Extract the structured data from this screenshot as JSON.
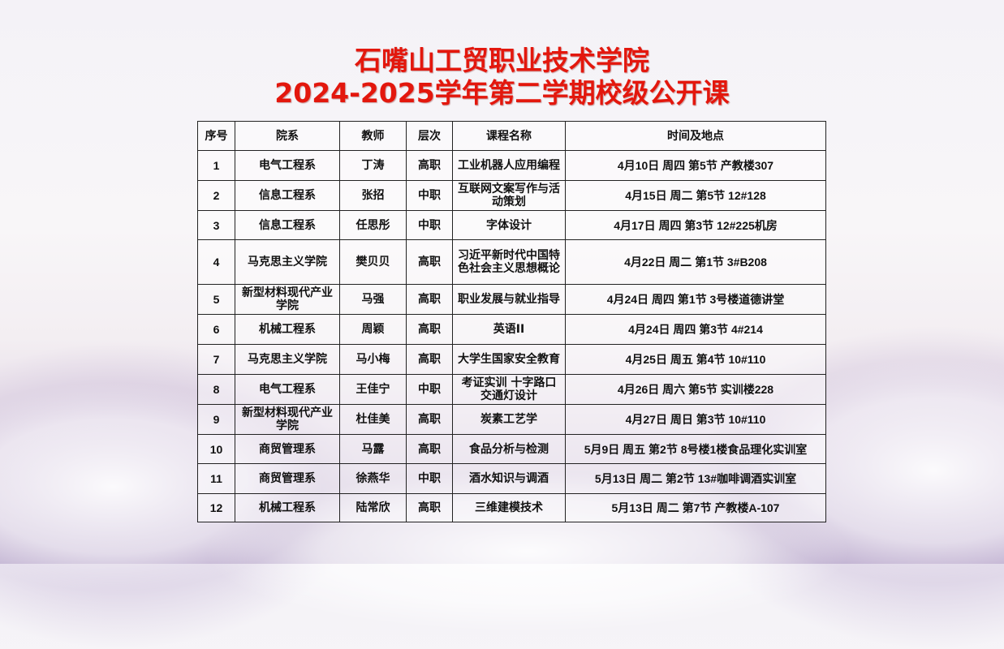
{
  "title_lines": [
    "石嘴山工贸职业技术学院",
    "2024-2025学年第二学期校级公开课"
  ],
  "colors": {
    "title": "#e3170d"
  },
  "table": {
    "headers": [
      "序号",
      "院系",
      "教师",
      "层次",
      "课程名称",
      "时间及地点"
    ],
    "rows": [
      [
        "1",
        "电气工程系",
        "丁涛",
        "高职",
        "工业机器人应用编程",
        "4月10日 周四 第5节 产教楼307"
      ],
      [
        "2",
        "信息工程系",
        "张招",
        "中职",
        "互联网文案写作与活动策划",
        "4月15日 周二  第5节 12#128"
      ],
      [
        "3",
        "信息工程系",
        "任思彤",
        "中职",
        "字体设计",
        "4月17日 周四  第3节 12#225机房"
      ],
      [
        "4",
        "马克思主义学院",
        "樊贝贝",
        "高职",
        "习近平新时代中国特色社会主义思想概论",
        "4月22日 周二 第1节 3#B208"
      ],
      [
        "5",
        "新型材料现代产业学院",
        "马强",
        "高职",
        "职业发展与就业指导",
        "4月24日 周四  第1节 3号楼道德讲堂"
      ],
      [
        "6",
        "机械工程系",
        "周颖",
        "高职",
        "英语II",
        "4月24日 周四 第3节 4#214"
      ],
      [
        "7",
        "马克思主义学院",
        "马小梅",
        "高职",
        "大学生国家安全教育",
        "4月25日 周五 第4节 10#110"
      ],
      [
        "8",
        "电气工程系",
        "王佳宁",
        "中职",
        "考证实训 十字路口交通灯设计",
        "4月26日 周六 第5节 实训楼228"
      ],
      [
        "9",
        "新型材料现代产业学院",
        "杜佳美",
        "高职",
        "炭素工艺学",
        "4月27日 周日 第3节 10#110"
      ],
      [
        "10",
        "商贸管理系",
        "马露",
        "高职",
        "食品分析与检测",
        "5月9日 周五 第2节 8号楼1楼食品理化实训室"
      ],
      [
        "11",
        "商贸管理系",
        "徐燕华",
        "中职",
        "酒水知识与调酒",
        "5月13日 周二 第2节 13#咖啡调酒实训室"
      ],
      [
        "12",
        "机械工程系",
        "陆常欣",
        "高职",
        "三维建模技术",
        "5月13日 周二 第7节 产教楼A-107"
      ]
    ]
  }
}
